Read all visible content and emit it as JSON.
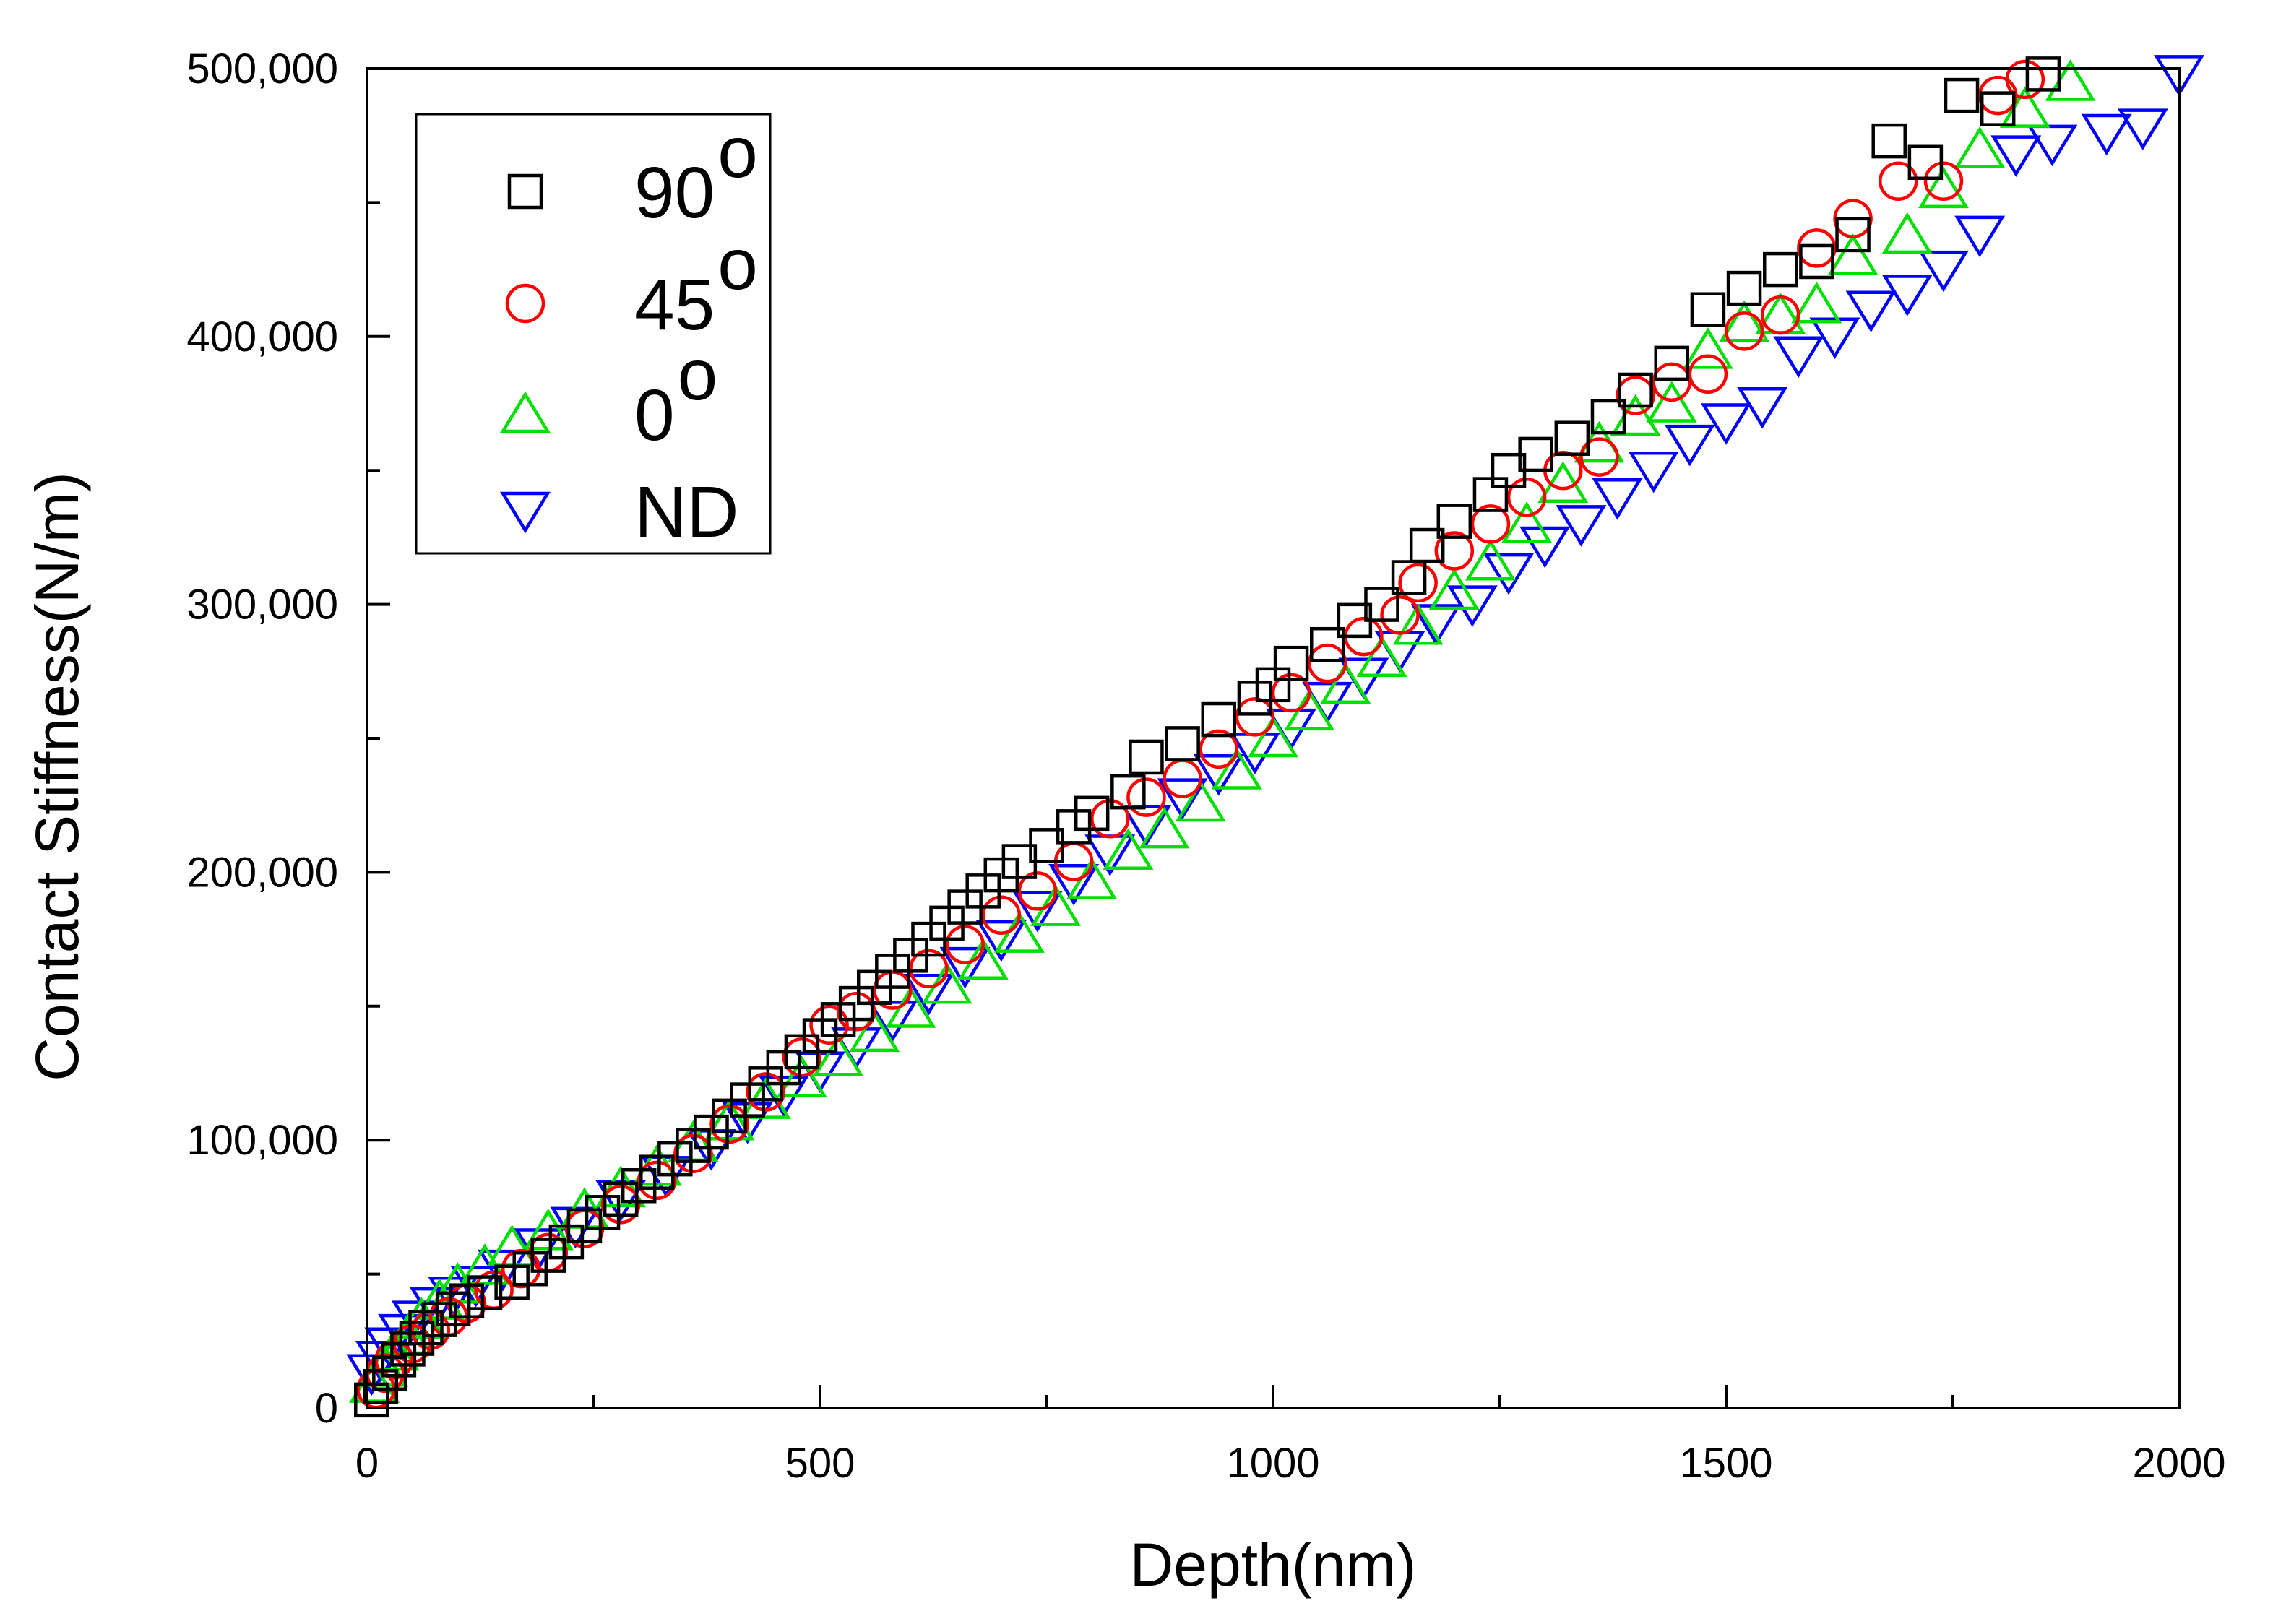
{
  "chart_data": {
    "type": "scatter",
    "title": "",
    "xlabel": "Depth(nm)",
    "ylabel": "Contact Stiffness(N/m)",
    "xlim": [
      0,
      2000
    ],
    "ylim": [
      0,
      500000
    ],
    "x_ticks": [
      0,
      500,
      1000,
      1500,
      2000
    ],
    "x_tick_labels": [
      "0",
      "500",
      "1000",
      "1500",
      "2000"
    ],
    "y_ticks": [
      0,
      100000,
      200000,
      300000,
      400000,
      500000
    ],
    "y_tick_labels": [
      "0",
      "100,000",
      "200,000",
      "300,000",
      "400,000",
      "500,000"
    ],
    "legend_position": "top-left",
    "series": [
      {
        "name": "90°",
        "label": "90",
        "sup": "o",
        "marker": "square",
        "color": "#000000",
        "points": [
          [
            5,
            3000
          ],
          [
            15,
            8000
          ],
          [
            25,
            13000
          ],
          [
            35,
            18000
          ],
          [
            45,
            22000
          ],
          [
            55,
            26000
          ],
          [
            65,
            30000
          ],
          [
            80,
            33000
          ],
          [
            95,
            37000
          ],
          [
            110,
            40000
          ],
          [
            130,
            43000
          ],
          [
            160,
            47000
          ],
          [
            180,
            52000
          ],
          [
            200,
            57000
          ],
          [
            220,
            62000
          ],
          [
            240,
            68000
          ],
          [
            260,
            73000
          ],
          [
            280,
            78000
          ],
          [
            300,
            83000
          ],
          [
            320,
            88000
          ],
          [
            340,
            93000
          ],
          [
            360,
            98000
          ],
          [
            380,
            103000
          ],
          [
            400,
            109000
          ],
          [
            420,
            115000
          ],
          [
            440,
            121000
          ],
          [
            460,
            127000
          ],
          [
            480,
            133000
          ],
          [
            500,
            139000
          ],
          [
            520,
            145000
          ],
          [
            540,
            151000
          ],
          [
            560,
            157000
          ],
          [
            580,
            163000
          ],
          [
            600,
            169000
          ],
          [
            620,
            175000
          ],
          [
            640,
            181000
          ],
          [
            660,
            187000
          ],
          [
            680,
            193000
          ],
          [
            700,
            199000
          ],
          [
            720,
            204000
          ],
          [
            750,
            210000
          ],
          [
            780,
            217000
          ],
          [
            800,
            222000
          ],
          [
            840,
            230000
          ],
          [
            860,
            243000
          ],
          [
            900,
            248000
          ],
          [
            940,
            257000
          ],
          [
            980,
            265000
          ],
          [
            1000,
            270000
          ],
          [
            1020,
            278000
          ],
          [
            1060,
            285000
          ],
          [
            1090,
            294000
          ],
          [
            1120,
            300000
          ],
          [
            1150,
            310000
          ],
          [
            1170,
            322000
          ],
          [
            1200,
            331000
          ],
          [
            1240,
            341000
          ],
          [
            1260,
            350000
          ],
          [
            1290,
            356000
          ],
          [
            1330,
            362000
          ],
          [
            1370,
            370000
          ],
          [
            1400,
            380000
          ],
          [
            1440,
            390000
          ],
          [
            1480,
            410000
          ],
          [
            1520,
            418000
          ],
          [
            1560,
            425000
          ],
          [
            1600,
            428000
          ],
          [
            1640,
            438000
          ],
          [
            1680,
            473000
          ],
          [
            1720,
            465000
          ],
          [
            1760,
            490000
          ],
          [
            1800,
            485000
          ],
          [
            1850,
            498000
          ]
        ]
      },
      {
        "name": "45°",
        "label": "45",
        "sup": "o",
        "marker": "circle",
        "color": "#ff0000",
        "points": [
          [
            10,
            7000
          ],
          [
            20,
            13000
          ],
          [
            30,
            18000
          ],
          [
            50,
            24000
          ],
          [
            70,
            29000
          ],
          [
            90,
            34000
          ],
          [
            110,
            39000
          ],
          [
            140,
            44000
          ],
          [
            170,
            52000
          ],
          [
            200,
            58000
          ],
          [
            240,
            67000
          ],
          [
            280,
            76000
          ],
          [
            320,
            85000
          ],
          [
            360,
            95000
          ],
          [
            400,
            106000
          ],
          [
            440,
            118000
          ],
          [
            480,
            131000
          ],
          [
            510,
            143000
          ],
          [
            540,
            148000
          ],
          [
            580,
            156000
          ],
          [
            620,
            164000
          ],
          [
            660,
            173000
          ],
          [
            700,
            184000
          ],
          [
            740,
            193000
          ],
          [
            780,
            204000
          ],
          [
            820,
            220000
          ],
          [
            860,
            228000
          ],
          [
            900,
            235000
          ],
          [
            940,
            246000
          ],
          [
            980,
            258000
          ],
          [
            1020,
            267000
          ],
          [
            1060,
            278000
          ],
          [
            1100,
            288000
          ],
          [
            1140,
            296000
          ],
          [
            1160,
            308000
          ],
          [
            1200,
            320000
          ],
          [
            1240,
            330000
          ],
          [
            1280,
            340000
          ],
          [
            1320,
            350000
          ],
          [
            1360,
            355000
          ],
          [
            1400,
            378000
          ],
          [
            1440,
            383000
          ],
          [
            1480,
            386000
          ],
          [
            1520,
            402000
          ],
          [
            1560,
            408000
          ],
          [
            1600,
            433000
          ],
          [
            1640,
            444000
          ],
          [
            1690,
            458000
          ],
          [
            1740,
            458000
          ],
          [
            1800,
            490000
          ],
          [
            1830,
            496000
          ]
        ]
      },
      {
        "name": "0°",
        "label": "0",
        "sup": "o",
        "marker": "triangle-up",
        "color": "#00e000",
        "points": [
          [
            8,
            9000
          ],
          [
            18,
            15000
          ],
          [
            30,
            21000
          ],
          [
            45,
            27000
          ],
          [
            60,
            33000
          ],
          [
            80,
            40000
          ],
          [
            100,
            46000
          ],
          [
            130,
            53000
          ],
          [
            160,
            60000
          ],
          [
            200,
            66000
          ],
          [
            240,
            74000
          ],
          [
            280,
            82000
          ],
          [
            320,
            90000
          ],
          [
            360,
            99000
          ],
          [
            400,
            107000
          ],
          [
            440,
            115000
          ],
          [
            480,
            123000
          ],
          [
            520,
            131000
          ],
          [
            560,
            140000
          ],
          [
            600,
            149000
          ],
          [
            640,
            158000
          ],
          [
            680,
            167000
          ],
          [
            720,
            177000
          ],
          [
            760,
            187000
          ],
          [
            800,
            197000
          ],
          [
            840,
            208000
          ],
          [
            880,
            216000
          ],
          [
            920,
            226000
          ],
          [
            960,
            238000
          ],
          [
            1000,
            250000
          ],
          [
            1040,
            260000
          ],
          [
            1080,
            270000
          ],
          [
            1120,
            280000
          ],
          [
            1160,
            292000
          ],
          [
            1200,
            305000
          ],
          [
            1240,
            316000
          ],
          [
            1280,
            330000
          ],
          [
            1320,
            345000
          ],
          [
            1360,
            360000
          ],
          [
            1400,
            370000
          ],
          [
            1440,
            375000
          ],
          [
            1480,
            395000
          ],
          [
            1520,
            405000
          ],
          [
            1560,
            408000
          ],
          [
            1600,
            412000
          ],
          [
            1640,
            430000
          ],
          [
            1700,
            438000
          ],
          [
            1740,
            455000
          ],
          [
            1780,
            470000
          ],
          [
            1830,
            485000
          ],
          [
            1880,
            495000
          ]
        ]
      },
      {
        "name": "ND",
        "label": "ND",
        "sup": "",
        "marker": "triangle-down",
        "color": "#0000ff",
        "points": [
          [
            5,
            13000
          ],
          [
            15,
            18000
          ],
          [
            25,
            23000
          ],
          [
            40,
            28000
          ],
          [
            55,
            33000
          ],
          [
            75,
            38000
          ],
          [
            95,
            42000
          ],
          [
            120,
            46000
          ],
          [
            150,
            52000
          ],
          [
            190,
            60000
          ],
          [
            230,
            68000
          ],
          [
            280,
            78000
          ],
          [
            330,
            87000
          ],
          [
            380,
            97000
          ],
          [
            420,
            107000
          ],
          [
            460,
            117000
          ],
          [
            500,
            126000
          ],
          [
            540,
            135000
          ],
          [
            580,
            145000
          ],
          [
            620,
            155000
          ],
          [
            660,
            165000
          ],
          [
            700,
            175000
          ],
          [
            740,
            186000
          ],
          [
            780,
            196000
          ],
          [
            820,
            207000
          ],
          [
            860,
            218000
          ],
          [
            900,
            228000
          ],
          [
            940,
            237000
          ],
          [
            980,
            245000
          ],
          [
            1020,
            254000
          ],
          [
            1060,
            264000
          ],
          [
            1100,
            273000
          ],
          [
            1140,
            283000
          ],
          [
            1180,
            293000
          ],
          [
            1220,
            300000
          ],
          [
            1260,
            312000
          ],
          [
            1300,
            322000
          ],
          [
            1340,
            330000
          ],
          [
            1380,
            340000
          ],
          [
            1420,
            350000
          ],
          [
            1460,
            360000
          ],
          [
            1500,
            368000
          ],
          [
            1540,
            374000
          ],
          [
            1580,
            393000
          ],
          [
            1620,
            400000
          ],
          [
            1660,
            410000
          ],
          [
            1700,
            416000
          ],
          [
            1740,
            425000
          ],
          [
            1780,
            438000
          ],
          [
            1820,
            468000
          ],
          [
            1860,
            472000
          ],
          [
            1920,
            476000
          ],
          [
            1960,
            478000
          ],
          [
            2000,
            498000
          ]
        ]
      }
    ]
  }
}
